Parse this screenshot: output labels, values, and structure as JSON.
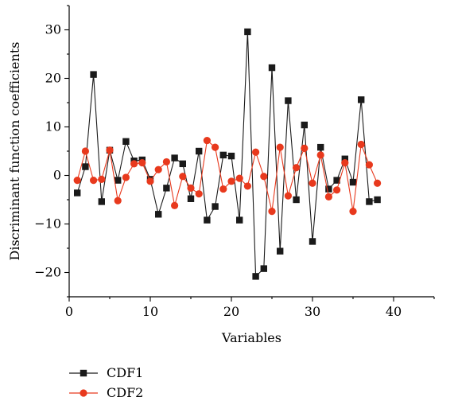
{
  "chart_data": {
    "type": "line",
    "xlabel": "Variables",
    "ylabel": "Discriminant function coefficients",
    "xlim": [
      0,
      45
    ],
    "ylim": [
      -25,
      35
    ],
    "xticks": [
      0,
      10,
      20,
      30,
      40
    ],
    "yticks": [
      -20,
      -10,
      0,
      10,
      20,
      30
    ],
    "xtick_labels": [
      "0",
      "10",
      "20",
      "30",
      "40"
    ],
    "ytick_labels": [
      "−20",
      "−10",
      "0",
      "10",
      "20",
      "30"
    ],
    "legend_position": "bottom-left",
    "x": [
      1,
      2,
      3,
      4,
      5,
      6,
      7,
      8,
      9,
      10,
      11,
      12,
      13,
      14,
      15,
      16,
      17,
      18,
      19,
      20,
      21,
      22,
      23,
      24,
      25,
      26,
      27,
      28,
      29,
      30,
      31,
      32,
      33,
      34,
      35,
      36,
      37,
      38
    ],
    "series": [
      {
        "name": "CDF1",
        "color": "#1a1a1a",
        "marker": "square",
        "values": [
          -3.6,
          1.8,
          20.8,
          -5.4,
          5.2,
          -1.0,
          7.0,
          3.0,
          3.2,
          -0.8,
          -8.0,
          -2.6,
          3.6,
          2.4,
          -4.8,
          5.0,
          -9.2,
          -6.4,
          4.2,
          4.0,
          -9.2,
          29.6,
          -20.8,
          -19.2,
          22.2,
          -15.6,
          15.4,
          -5.0,
          10.4,
          -13.6,
          5.8,
          -2.8,
          -1.0,
          3.4,
          -1.4,
          15.6,
          -5.4,
          -5.0
        ]
      },
      {
        "name": "CDF2",
        "color": "#e8391d",
        "marker": "circle",
        "values": [
          -1.0,
          5.0,
          -1.0,
          -0.8,
          5.2,
          -5.2,
          -0.4,
          2.4,
          2.6,
          -1.2,
          1.2,
          2.8,
          -6.2,
          -0.2,
          -2.6,
          -3.8,
          7.2,
          5.8,
          -2.8,
          -1.2,
          -0.6,
          -2.2,
          4.8,
          -0.2,
          -7.4,
          5.8,
          -4.2,
          1.6,
          5.6,
          -1.6,
          4.2,
          -4.4,
          -3.0,
          2.6,
          -7.4,
          6.4,
          2.2,
          -1.6
        ]
      }
    ]
  }
}
